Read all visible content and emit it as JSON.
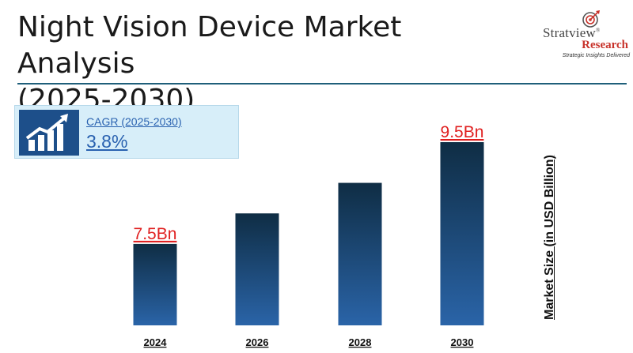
{
  "header": {
    "title_line1": "Night Vision Device Market Analysis",
    "title_line2": "(2025-2030)"
  },
  "logo": {
    "brand_part1": "Stratview",
    "brand_part2": "Research",
    "registered": "®",
    "tagline": "Strategic Insights Delivered"
  },
  "cagr": {
    "label": "CAGR (2025-2030)",
    "value": "3.8%",
    "icon": "growth-chart-icon"
  },
  "colors": {
    "bar_top": "#0f2d44",
    "bar_bottom": "#2a64a8",
    "value_label": "#e02020",
    "rule": "#1f5f7a"
  },
  "chart_data": {
    "type": "bar",
    "categories": [
      "2024",
      "2026",
      "2028",
      "2030"
    ],
    "values": [
      7.5,
      8.1,
      8.7,
      9.5
    ],
    "data_labels": [
      "7.5Bn",
      "",
      "",
      "9.5Bn"
    ],
    "ylabel": "Market Size (in USD Billion)",
    "title": "",
    "grid": false,
    "ylim": [
      5.9,
      9.5
    ]
  }
}
